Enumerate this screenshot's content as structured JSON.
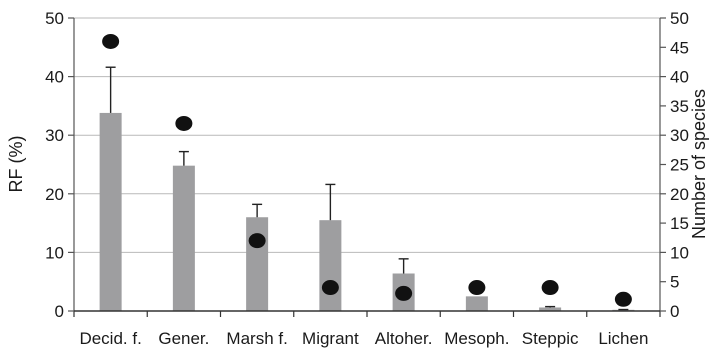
{
  "chart_data": {
    "type": "bar",
    "categories": [
      "Decid. f.",
      "Gener.",
      "Marsh f.",
      "Migrant",
      "Altoher.",
      "Mesoph.",
      "Steppic",
      "Lichen"
    ],
    "series": [
      {
        "axis": "left",
        "kind": "bar",
        "values": [
          33.8,
          24.8,
          16.0,
          15.5,
          6.4,
          2.5,
          0.6,
          0.2
        ],
        "error": [
          7.8,
          2.4,
          2.2,
          6.1,
          2.5,
          0,
          0.15,
          0.05
        ],
        "color": "#9e9ea0"
      },
      {
        "axis": "right",
        "kind": "point",
        "values": [
          46,
          32,
          12,
          4,
          3,
          4,
          4,
          2
        ],
        "color": "#111111"
      }
    ],
    "ylabel": "RF (%)",
    "ylabel_right": "Number of species",
    "ylim": [
      0,
      50
    ],
    "ylim_right": [
      0,
      50
    ],
    "yticks": [
      "0",
      "10",
      "20",
      "30",
      "40",
      "50"
    ],
    "yticks_right": [
      "0",
      "5",
      "10",
      "15",
      "20",
      "25",
      "30",
      "35",
      "40",
      "45",
      "50"
    ],
    "grid": true,
    "legend": "none"
  }
}
